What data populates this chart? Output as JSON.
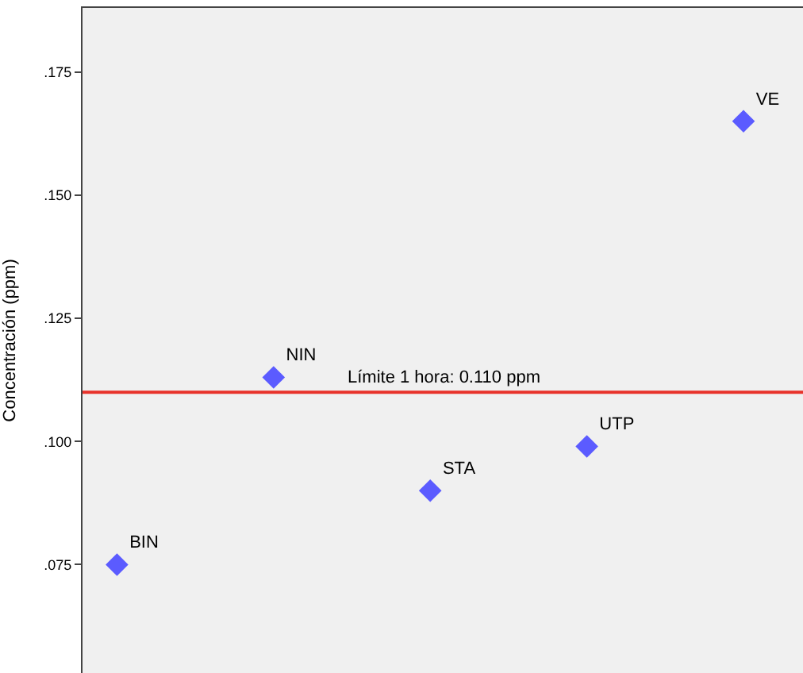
{
  "chart_data": {
    "type": "scatter",
    "ylabel": "Concentración (ppm)",
    "categories": [
      null,
      null,
      null,
      null,
      null
    ],
    "series": [
      {
        "color": "#5b5bff",
        "values": [
          0.075,
          0.113,
          0.09,
          0.099,
          0.165
        ],
        "value_labels": [
          "BIN",
          "NIN",
          "STA",
          "UTP",
          "VE"
        ]
      }
    ],
    "ylim": [
      0.053,
      0.188
    ],
    "yticks": [
      {
        "value": 0.075,
        "label": ".075"
      },
      {
        "value": 0.1,
        "label": ".100"
      },
      {
        "value": 0.125,
        "label": ".125"
      },
      {
        "value": 0.15,
        "label": ".150"
      },
      {
        "value": 0.175,
        "label": ".175"
      }
    ],
    "ref_lines": [
      {
        "axis": "y",
        "value": 0.11,
        "label": "Límite 1 hora: 0.110 ppm",
        "color": "#e8322a"
      }
    ],
    "tick_labels": "y",
    "grid": false,
    "marker": "diamond"
  }
}
